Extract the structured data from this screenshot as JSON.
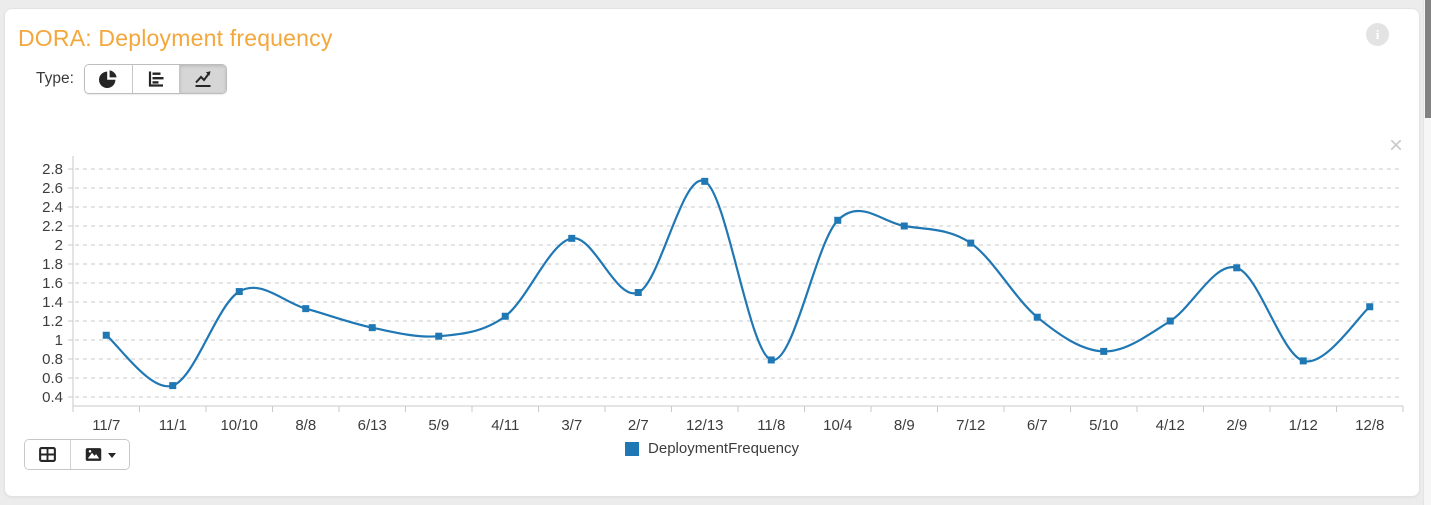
{
  "header": {
    "title": "DORA: Deployment frequency"
  },
  "icons": {
    "info": "i",
    "close": "×"
  },
  "type_selector": {
    "label": "Type:",
    "options": [
      {
        "id": "pie",
        "icon": "pie-chart-icon",
        "selected": false
      },
      {
        "id": "bar",
        "icon": "bar-chart-icon",
        "selected": false
      },
      {
        "id": "line",
        "icon": "line-chart-icon",
        "selected": true
      }
    ]
  },
  "toolbar": {
    "buttons": [
      {
        "icon": "table-icon"
      },
      {
        "icon": "image-icon",
        "has_dropdown": true
      }
    ]
  },
  "colors": {
    "accent_orange": "#f3a73c",
    "series_blue": "#1f77b4",
    "grid": "#dcdcdc",
    "axis": "#c9c9c9",
    "page_bg": "#ececec"
  },
  "chart_data": {
    "type": "line",
    "title": "DORA: Deployment frequency",
    "xlabel": "",
    "ylabel": "",
    "categories": [
      "11/7",
      "11/1",
      "10/10",
      "8/8",
      "6/13",
      "5/9",
      "4/11",
      "3/7",
      "2/7",
      "12/13",
      "11/8",
      "10/4",
      "8/9",
      "7/12",
      "6/7",
      "5/10",
      "4/12",
      "2/9",
      "1/12",
      "12/8"
    ],
    "series": [
      {
        "name": "DeploymentFrequency",
        "color": "#1f77b4",
        "values": [
          1.05,
          0.52,
          1.51,
          1.33,
          1.13,
          1.04,
          1.25,
          2.07,
          1.5,
          2.67,
          0.79,
          2.26,
          2.2,
          2.02,
          1.24,
          0.88,
          1.2,
          1.76,
          0.78,
          1.35
        ]
      }
    ],
    "ylim": [
      0.4,
      2.8
    ],
    "y_tick_step": 0.2,
    "grid": "horizontal-dashed",
    "curve": "smooth",
    "marker": "square",
    "legend_position": "bottom-center"
  }
}
